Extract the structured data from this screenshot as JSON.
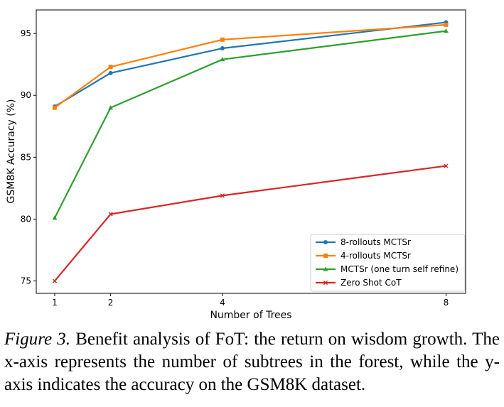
{
  "chart_data": {
    "type": "line",
    "x": [
      1,
      2,
      4,
      8
    ],
    "xlabel": "Number of Trees",
    "ylabel": "GSM8K Accuracy (%)",
    "x_ticks": [
      "1",
      "2",
      "4",
      "8"
    ],
    "y_ticks": [
      "75",
      "80",
      "85",
      "90",
      "95"
    ],
    "xlim": [
      0.67,
      8.35
    ],
    "ylim": [
      74.0,
      96.9
    ],
    "grid": false,
    "legend_position": "lower-right",
    "series": [
      {
        "name": "8-rollouts MCTSr",
        "color": "#1f77b4",
        "marker": "circle",
        "values": [
          89.1,
          91.8,
          93.8,
          95.9
        ]
      },
      {
        "name": "4-rollouts MCTSr",
        "color": "#ff7f0e",
        "marker": "square",
        "values": [
          89.0,
          92.3,
          94.5,
          95.7
        ]
      },
      {
        "name": "MCTSr (one turn self refine)",
        "color": "#2ca02c",
        "marker": "triangle",
        "values": [
          80.1,
          89.0,
          92.9,
          95.2
        ]
      },
      {
        "name": "Zero Shot CoT",
        "color": "#d62728",
        "marker": "x",
        "values": [
          75.0,
          80.4,
          81.9,
          84.3
        ]
      }
    ]
  },
  "caption": {
    "label": "Figure 3.",
    "text": "Benefit analysis of FoT: the return on wisdom growth. The x-axis represents the number of subtrees in the forest, while the y-axis indicates the accuracy on the GSM8K dataset."
  }
}
